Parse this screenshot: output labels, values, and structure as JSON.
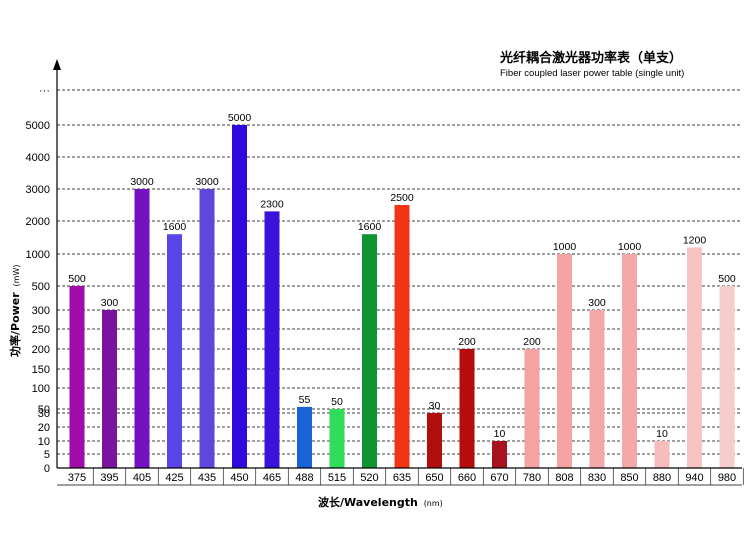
{
  "chart_data": {
    "type": "bar",
    "title": "光纤耦合激光器功率表（单支）",
    "subtitle": "Fiber coupled laser power table (single unit)",
    "xlabel": "波长/Wavelength",
    "xlabel_unit": "(nm)",
    "ylabel": "功率/Power",
    "ylabel_unit": "(mW)",
    "y_ticks": [
      "0",
      "5",
      "10",
      "20",
      "30",
      "50",
      "100",
      "150",
      "200",
      "250",
      "300",
      "500",
      "1000",
      "2000",
      "3000",
      "4000",
      "5000",
      "···"
    ],
    "categories": [
      "375",
      "395",
      "405",
      "425",
      "435",
      "450",
      "465",
      "488",
      "515",
      "520",
      "635",
      "650",
      "660",
      "670",
      "780",
      "808",
      "830",
      "850",
      "880",
      "940",
      "980"
    ],
    "values": [
      500,
      300,
      3000,
      1600,
      3000,
      5000,
      2300,
      55,
      50,
      1600,
      2500,
      30,
      200,
      10,
      200,
      1000,
      300,
      1000,
      10,
      1200,
      500
    ],
    "bar_labels": [
      "500",
      "300",
      "3000",
      "1600",
      "3000",
      "5000",
      "2300",
      "55",
      "50",
      "1600",
      "2500",
      "30",
      "200",
      "10",
      "200",
      "1000",
      "300",
      "1000",
      "10",
      "1200",
      "500"
    ],
    "colors": [
      "#a00ca8",
      "#7a139e",
      "#7412c2",
      "#5a46e8",
      "#5f47dc",
      "#3009e0",
      "#3b11dc",
      "#1a62d8",
      "#30dc5a",
      "#0f9431",
      "#f03414",
      "#b30e0e",
      "#b50c0c",
      "#a6131e",
      "#f5a3a3",
      "#f5a3a3",
      "#f5a8a8",
      "#f5a8a8",
      "#f7bcbc",
      "#f7c3c3",
      "#f7cccc"
    ],
    "grid": true,
    "legend": "none"
  }
}
